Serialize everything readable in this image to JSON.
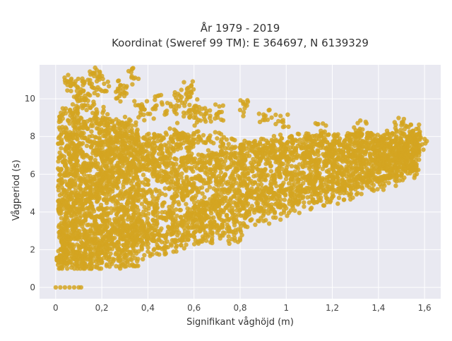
{
  "chart_data": {
    "type": "scatter",
    "title_line1": "År 1979 - 2019",
    "title_line2": "Koordinat (Sweref 99 TM): E 364697, N 6139329",
    "xlabel": "Signifikant våghöjd (m)",
    "ylabel": "Vågperiod (s)",
    "xlim": [
      -0.07,
      1.67
    ],
    "ylim": [
      -0.6,
      11.8
    ],
    "x_ticks": [
      0,
      0.2,
      0.4,
      0.6,
      0.8,
      1,
      1.2,
      1.4,
      1.6
    ],
    "x_tick_labels": [
      "0",
      "0,2",
      "0,4",
      "0,6",
      "0,8",
      "1",
      "1,2",
      "1,4",
      "1,6"
    ],
    "y_ticks": [
      0,
      2,
      4,
      6,
      8,
      10
    ],
    "y_tick_labels": [
      "0",
      "2",
      "4",
      "6",
      "8",
      "10"
    ],
    "grid": true,
    "plot_background": "#e9e9f1",
    "grid_color": "#ffffff",
    "marker_color": "#d4a421",
    "series": [
      {
        "points": [
          [
            0.0,
            0.0
          ],
          [
            0.02,
            0.0
          ],
          [
            0.04,
            0.0
          ],
          [
            0.06,
            0.0
          ],
          [
            0.08,
            0.0
          ],
          [
            0.1,
            0.0
          ],
          [
            0.11,
            0.0
          ],
          [
            0.01,
            1.2
          ],
          [
            0.02,
            1.6
          ],
          [
            0.03,
            2.1
          ],
          [
            0.04,
            1.4
          ],
          [
            0.05,
            1.9
          ],
          [
            0.06,
            2.4
          ],
          [
            0.08,
            1.5
          ],
          [
            0.1,
            1.8
          ],
          [
            0.12,
            2.2
          ],
          [
            0.14,
            1.6
          ],
          [
            0.16,
            2.6
          ],
          [
            0.18,
            2.0
          ],
          [
            0.2,
            2.9
          ],
          [
            0.22,
            2.3
          ],
          [
            0.25,
            3.1
          ],
          [
            0.28,
            2.6
          ],
          [
            0.3,
            3.3
          ],
          [
            0.33,
            2.8
          ],
          [
            0.36,
            3.5
          ],
          [
            0.4,
            3.0
          ],
          [
            0.44,
            3.4
          ],
          [
            0.48,
            3.7
          ],
          [
            0.52,
            3.6
          ],
          [
            0.56,
            3.8
          ],
          [
            0.6,
            4.0
          ],
          [
            0.65,
            4.1
          ],
          [
            0.7,
            4.3
          ],
          [
            0.75,
            4.4
          ],
          [
            0.8,
            4.6
          ],
          [
            0.85,
            4.8
          ],
          [
            0.9,
            4.9
          ],
          [
            0.95,
            5.0
          ],
          [
            1.0,
            5.2
          ],
          [
            1.05,
            5.3
          ],
          [
            1.1,
            5.5
          ],
          [
            1.15,
            5.6
          ],
          [
            1.2,
            5.8
          ],
          [
            1.25,
            6.0
          ],
          [
            1.3,
            6.1
          ],
          [
            1.35,
            6.3
          ],
          [
            1.4,
            6.5
          ],
          [
            1.45,
            6.7
          ],
          [
            1.5,
            6.9
          ],
          [
            1.55,
            7.2
          ],
          [
            1.58,
            7.5
          ],
          [
            0.03,
            3.0
          ],
          [
            0.05,
            4.2
          ],
          [
            0.06,
            5.5
          ],
          [
            0.07,
            6.4
          ],
          [
            0.08,
            7.3
          ],
          [
            0.09,
            8.1
          ],
          [
            0.1,
            8.7
          ],
          [
            0.12,
            9.6
          ],
          [
            0.14,
            9.9
          ],
          [
            0.16,
            10.6
          ],
          [
            0.18,
            9.3
          ],
          [
            0.2,
            8.9
          ],
          [
            0.22,
            8.6
          ],
          [
            0.25,
            8.4
          ],
          [
            0.28,
            8.2
          ],
          [
            0.3,
            8.5
          ],
          [
            0.33,
            7.9
          ],
          [
            0.36,
            7.7
          ],
          [
            0.4,
            7.6
          ],
          [
            0.44,
            7.4
          ],
          [
            0.48,
            7.5
          ],
          [
            0.52,
            8.3
          ],
          [
            0.56,
            7.8
          ],
          [
            0.6,
            8.1
          ],
          [
            0.65,
            7.7
          ],
          [
            0.7,
            7.9
          ],
          [
            0.75,
            7.6
          ],
          [
            0.8,
            7.4
          ],
          [
            0.85,
            7.3
          ],
          [
            0.9,
            7.5
          ],
          [
            0.95,
            7.2
          ],
          [
            1.0,
            7.3
          ],
          [
            1.05,
            7.5
          ],
          [
            1.1,
            7.1
          ],
          [
            1.15,
            7.4
          ],
          [
            1.2,
            7.6
          ],
          [
            1.25,
            7.5
          ],
          [
            1.3,
            7.7
          ],
          [
            1.35,
            7.8
          ],
          [
            1.4,
            7.6
          ],
          [
            1.45,
            7.9
          ],
          [
            1.5,
            8.0
          ],
          [
            1.55,
            8.1
          ],
          [
            1.58,
            7.9
          ],
          [
            0.1,
            3.5
          ],
          [
            0.15,
            4.5
          ],
          [
            0.2,
            5.2
          ],
          [
            0.25,
            5.8
          ],
          [
            0.3,
            6.1
          ],
          [
            0.35,
            6.3
          ],
          [
            0.4,
            6.5
          ],
          [
            0.45,
            6.4
          ],
          [
            0.5,
            6.6
          ],
          [
            0.55,
            6.5
          ],
          [
            0.6,
            6.7
          ],
          [
            0.65,
            6.6
          ],
          [
            0.7,
            6.8
          ],
          [
            0.8,
            6.7
          ],
          [
            0.9,
            6.9
          ],
          [
            1.0,
            6.8
          ],
          [
            1.1,
            7.0
          ],
          [
            1.2,
            6.9
          ],
          [
            1.3,
            7.1
          ],
          [
            1.4,
            7.0
          ],
          [
            1.5,
            7.3
          ],
          [
            0.35,
            2.5
          ],
          [
            0.4,
            2.7
          ],
          [
            0.45,
            2.5
          ],
          [
            0.5,
            2.8
          ],
          [
            0.55,
            2.6
          ],
          [
            0.6,
            2.9
          ],
          [
            0.65,
            2.8
          ],
          [
            0.7,
            2.9
          ],
          [
            0.75,
            2.7
          ],
          [
            0.8,
            2.6
          ],
          [
            0.15,
            5.0
          ],
          [
            0.18,
            6.0
          ],
          [
            0.22,
            6.8
          ],
          [
            0.26,
            7.2
          ],
          [
            0.3,
            7.0
          ],
          [
            0.35,
            7.1
          ],
          [
            0.4,
            7.0
          ],
          [
            0.45,
            6.0
          ],
          [
            0.5,
            5.5
          ],
          [
            0.55,
            5.2
          ],
          [
            0.6,
            5.3
          ],
          [
            0.7,
            5.6
          ],
          [
            0.8,
            5.8
          ],
          [
            0.9,
            6.0
          ],
          [
            1.0,
            6.2
          ],
          [
            1.1,
            6.3
          ],
          [
            1.2,
            6.5
          ],
          [
            1.3,
            6.6
          ],
          [
            1.4,
            6.8
          ],
          [
            1.5,
            7.0
          ],
          [
            0.06,
            10.9
          ],
          [
            0.08,
            10.8
          ],
          [
            0.1,
            10.1
          ],
          [
            0.12,
            10.4
          ],
          [
            0.14,
            11.0
          ],
          [
            0.19,
            11.2
          ],
          [
            0.21,
            10.8
          ],
          [
            0.28,
            10.7
          ],
          [
            0.33,
            11.2
          ],
          [
            0.28,
            10.3
          ],
          [
            0.37,
            9.5
          ],
          [
            0.4,
            9.2
          ],
          [
            0.46,
            9.8
          ],
          [
            0.5,
            9.6
          ],
          [
            0.53,
            9.9
          ],
          [
            0.58,
            9.4
          ],
          [
            0.6,
            9.0
          ],
          [
            0.63,
            9.2
          ],
          [
            0.67,
            9.1
          ],
          [
            0.72,
            9.3
          ],
          [
            0.82,
            9.5
          ],
          [
            0.91,
            9.1
          ],
          [
            0.98,
            8.8
          ],
          [
            1.15,
            8.3
          ],
          [
            1.32,
            8.4
          ],
          [
            1.5,
            8.6
          ],
          [
            1.55,
            8.3
          ],
          [
            0.57,
            10.5
          ],
          [
            0.59,
            10.3
          ],
          [
            0.1,
            1.1
          ],
          [
            0.15,
            1.2
          ],
          [
            0.2,
            1.3
          ],
          [
            0.25,
            1.4
          ],
          [
            0.3,
            1.6
          ],
          [
            0.35,
            1.8
          ],
          [
            0.4,
            1.9
          ],
          [
            0.45,
            2.1
          ],
          [
            0.5,
            2.3
          ],
          [
            0.55,
            2.5
          ],
          [
            0.6,
            2.7
          ],
          [
            0.65,
            2.9
          ],
          [
            0.7,
            3.1
          ],
          [
            0.75,
            3.2
          ],
          [
            0.8,
            3.4
          ],
          [
            0.85,
            3.6
          ],
          [
            0.9,
            3.8
          ],
          [
            0.95,
            4.0
          ],
          [
            1.0,
            4.2
          ],
          [
            1.05,
            4.4
          ],
          [
            1.1,
            4.5
          ],
          [
            1.15,
            4.6
          ],
          [
            1.2,
            4.8
          ],
          [
            1.25,
            5.0
          ],
          [
            1.3,
            5.2
          ],
          [
            1.35,
            5.4
          ],
          [
            1.4,
            5.6
          ],
          [
            1.45,
            5.8
          ],
          [
            1.5,
            6.0
          ],
          [
            1.55,
            6.2
          ]
        ]
      }
    ]
  }
}
